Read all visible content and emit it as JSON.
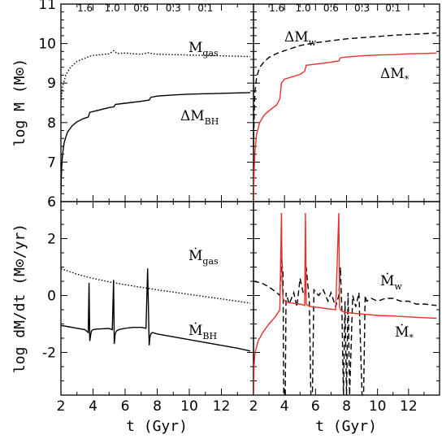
{
  "chart_data": [
    {
      "panel": "top-left",
      "type": "line",
      "ylabel": "log M (M⊙)",
      "ylim": [
        6,
        11
      ],
      "xlim": [
        2,
        14
      ],
      "top_axis_labels": [
        "1.6",
        "1.0",
        "0.6",
        "0.3",
        "0.1"
      ],
      "top_axis_t": [
        3.5,
        5.2,
        7.0,
        9.0,
        11.0
      ],
      "series": [
        {
          "name": "M_gas",
          "color": "#000000",
          "style": "dotted",
          "x": [
            2.0,
            2.1,
            2.3,
            2.6,
            3.0,
            3.5,
            3.8,
            4.0,
            4.5,
            5.0,
            5.3,
            5.5,
            6.0,
            6.5,
            7.0,
            7.5,
            7.7,
            8.0,
            9.0,
            10.0,
            11.0,
            12.0,
            13.0,
            13.8
          ],
          "y": [
            8.5,
            8.9,
            9.2,
            9.4,
            9.55,
            9.63,
            9.68,
            9.7,
            9.72,
            9.74,
            9.82,
            9.75,
            9.76,
            9.74,
            9.73,
            9.77,
            9.74,
            9.73,
            9.72,
            9.71,
            9.7,
            9.69,
            9.68,
            9.67
          ]
        },
        {
          "name": "ΔM_BH",
          "color": "#000000",
          "style": "solid",
          "x": [
            2.0,
            2.02,
            2.05,
            2.1,
            2.2,
            2.4,
            2.7,
            3.0,
            3.4,
            3.7,
            3.8,
            4.0,
            4.5,
            5.0,
            5.3,
            5.4,
            6.0,
            7.0,
            7.5,
            7.6,
            8.0,
            9.0,
            10.0,
            11.0,
            12.0,
            13.0,
            13.8
          ],
          "y": [
            6.2,
            6.6,
            6.9,
            7.2,
            7.5,
            7.75,
            7.92,
            8.02,
            8.1,
            8.14,
            8.26,
            8.28,
            8.33,
            8.38,
            8.4,
            8.46,
            8.49,
            8.54,
            8.57,
            8.64,
            8.67,
            8.7,
            8.72,
            8.73,
            8.74,
            8.75,
            8.76
          ]
        }
      ]
    },
    {
      "panel": "top-right",
      "type": "line",
      "ylim": [
        6,
        11
      ],
      "xlim": [
        2,
        14
      ],
      "top_axis_labels": [
        "1.6",
        "1.0",
        "0.6",
        "0.3",
        "0.1"
      ],
      "top_axis_t": [
        3.5,
        5.2,
        7.0,
        9.0,
        11.0
      ],
      "series": [
        {
          "name": "ΔM_w",
          "color": "#000000",
          "style": "dashed",
          "x": [
            2.0,
            2.05,
            2.1,
            2.2,
            2.4,
            2.7,
            3.0,
            3.5,
            4.0,
            5.0,
            6.0,
            7.0,
            8.0,
            9.0,
            10.0,
            11.0,
            12.0,
            13.0,
            13.8
          ],
          "y": [
            7.4,
            8.3,
            8.8,
            9.15,
            9.4,
            9.55,
            9.65,
            9.75,
            9.82,
            9.95,
            10.02,
            10.07,
            10.12,
            10.15,
            10.18,
            10.21,
            10.23,
            10.25,
            10.27
          ]
        },
        {
          "name": "ΔM_*",
          "color": "#e8302c",
          "style": "solid",
          "x": [
            2.0,
            2.02,
            2.05,
            2.1,
            2.2,
            2.4,
            2.7,
            3.0,
            3.5,
            3.7,
            3.8,
            4.0,
            5.0,
            5.3,
            5.4,
            6.0,
            7.0,
            7.5,
            7.6,
            8.0,
            9.0,
            10.0,
            11.0,
            12.0,
            13.0,
            13.8
          ],
          "y": [
            6.0,
            6.5,
            6.9,
            7.3,
            7.7,
            8.0,
            8.2,
            8.3,
            8.45,
            8.6,
            9.0,
            9.1,
            9.22,
            9.3,
            9.45,
            9.48,
            9.53,
            9.56,
            9.64,
            9.66,
            9.69,
            9.71,
            9.72,
            9.74,
            9.75,
            9.76
          ]
        }
      ],
      "annotations": [
        "ΔM_w",
        "ΔM_*"
      ]
    },
    {
      "panel": "bottom-left",
      "type": "line",
      "xlabel": "t (Gyr)",
      "ylabel": "log dM/dt (M⊙/yr)",
      "xlim": [
        2,
        14
      ],
      "ylim": [
        -3.5,
        3.3
      ],
      "xticks": [
        "2",
        "4",
        "6",
        "8",
        "10",
        "12"
      ],
      "yticks": [
        "-2",
        "0",
        "2"
      ],
      "series": [
        {
          "name": "Ṁ_gas",
          "color": "#000000",
          "style": "dotted",
          "x": [
            2.0,
            3.0,
            4.0,
            5.0,
            6.0,
            7.0,
            8.0,
            9.0,
            10.0,
            11.0,
            12.0,
            13.0,
            13.8
          ],
          "y": [
            0.95,
            0.75,
            0.6,
            0.48,
            0.38,
            0.29,
            0.2,
            0.12,
            0.04,
            -0.04,
            -0.12,
            -0.2,
            -0.27
          ]
        },
        {
          "name": "Ṁ_BH",
          "color": "#000000",
          "style": "solid",
          "x": [
            2.0,
            2.5,
            3.0,
            3.5,
            3.7,
            3.75,
            3.8,
            3.85,
            3.9,
            4.0,
            4.2,
            4.6,
            5.0,
            5.2,
            5.28,
            5.32,
            5.38,
            5.45,
            5.6,
            6.0,
            6.5,
            7.0,
            7.3,
            7.4,
            7.5,
            7.55,
            7.6,
            7.7,
            8.0,
            9.0,
            10.0,
            11.0,
            12.0,
            13.0,
            13.8
          ],
          "y": [
            -1.05,
            -1.1,
            -1.15,
            -1.2,
            -1.3,
            0.45,
            -1.6,
            -1.4,
            -1.25,
            -1.2,
            -1.18,
            -1.17,
            -1.16,
            -1.2,
            0.55,
            -1.7,
            -1.35,
            -1.25,
            -1.2,
            -1.15,
            -1.12,
            -1.12,
            -1.15,
            0.95,
            -1.75,
            -1.45,
            -1.35,
            -1.3,
            -1.35,
            -1.45,
            -1.55,
            -1.65,
            -1.75,
            -1.85,
            -1.95
          ]
        }
      ]
    },
    {
      "panel": "bottom-right",
      "type": "line",
      "xlabel": "t (Gyr)",
      "xlim": [
        2,
        14
      ],
      "ylim": [
        -3.5,
        3.3
      ],
      "xticks": [
        "2",
        "4",
        "6",
        "8",
        "10",
        "12"
      ],
      "series": [
        {
          "name": "Ṁ_w",
          "color": "#000000",
          "style": "dashed",
          "x": [
            2.0,
            2.5,
            3.0,
            3.5,
            3.7,
            3.8,
            3.9,
            3.95,
            4.05,
            4.1,
            4.3,
            4.6,
            4.8,
            5.0,
            5.2,
            5.3,
            5.4,
            5.6,
            5.7,
            5.8,
            5.9,
            6.2,
            6.5,
            6.8,
            7.0,
            7.3,
            7.5,
            7.6,
            7.7,
            7.8,
            7.9,
            8.0,
            8.1,
            8.2,
            8.4,
            8.6,
            8.8,
            9.0,
            9.1,
            9.2,
            9.3,
            9.6,
            10.0,
            10.5,
            11.0,
            11.5,
            12.0,
            12.5,
            13.0,
            13.8
          ],
          "y": [
            0.5,
            0.45,
            0.3,
            0.1,
            0.0,
            1.3,
            0.8,
            -3.5,
            -3.5,
            0.1,
            -0.3,
            0.1,
            -0.4,
            0.6,
            0.1,
            0.0,
            1.0,
            -0.2,
            -3.5,
            -3.5,
            0.2,
            0.0,
            0.2,
            -0.2,
            0.1,
            -0.4,
            0.0,
            1.0,
            -0.5,
            -3.5,
            -0.2,
            -3.5,
            0.1,
            -3.5,
            0.0,
            -0.4,
            0.1,
            -3.5,
            -3.5,
            0.0,
            -0.2,
            -0.1,
            -0.2,
            -0.1,
            -0.1,
            -0.2,
            -0.2,
            -0.3,
            -0.3,
            -0.35
          ]
        },
        {
          "name": "Ṁ_*",
          "color": "#e8302c",
          "style": "solid",
          "x": [
            2.0,
            2.03,
            2.1,
            2.3,
            2.6,
            3.0,
            3.4,
            3.7,
            3.8,
            3.85,
            3.9,
            4.0,
            4.3,
            4.6,
            5.0,
            5.3,
            5.35,
            5.4,
            5.5,
            5.8,
            6.2,
            6.6,
            7.0,
            7.3,
            7.5,
            7.55,
            7.6,
            7.7,
            8.0,
            9.0,
            10.0,
            11.0,
            12.0,
            13.0,
            13.8
          ],
          "y": [
            -3.5,
            -2.5,
            -2.0,
            -1.6,
            -1.3,
            -1.0,
            -0.75,
            -0.5,
            2.9,
            0.5,
            -0.1,
            -0.2,
            -0.25,
            -0.28,
            -0.3,
            -0.35,
            2.9,
            -0.3,
            -0.35,
            -0.4,
            -0.42,
            -0.45,
            -0.48,
            -0.5,
            2.9,
            -0.4,
            -0.5,
            -0.55,
            -0.6,
            -0.65,
            -0.7,
            -0.72,
            -0.75,
            -0.78,
            -0.8
          ]
        }
      ]
    }
  ],
  "annotations": {
    "top_left_gas_main": "M",
    "top_left_gas_sub": "gas",
    "top_left_bh_main": "ΔM",
    "top_left_bh_sub": "BH",
    "top_right_w_main": "ΔM",
    "top_right_w_sub": "w",
    "top_right_star_main": "ΔM",
    "top_right_star_sub": "*",
    "bottom_left_gas_main": "Ṁ",
    "bottom_left_gas_sub": "gas",
    "bottom_left_bh_main": "Ṁ",
    "bottom_left_bh_sub": "BH",
    "bottom_right_w_main": "Ṁ",
    "bottom_right_w_sub": "w",
    "bottom_right_star_main": "Ṁ",
    "bottom_right_star_sub": "*"
  },
  "axes": {
    "top_yticks": [
      "6",
      "7",
      "8",
      "9",
      "10",
      "11"
    ],
    "top_ylabel": "log M (M⊙)",
    "bottom_ylabel": "log dM/dt (M⊙/yr)",
    "xlabel_left": "t (Gyr)",
    "xlabel_right": "t (Gyr)"
  },
  "colors": {
    "black": "#000000",
    "red": "#e8302c"
  }
}
